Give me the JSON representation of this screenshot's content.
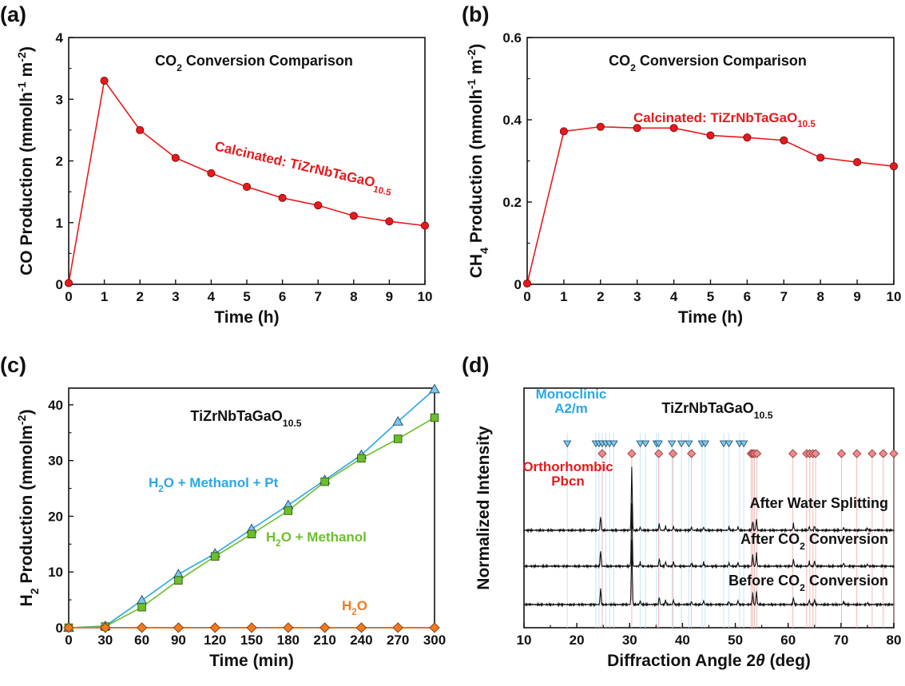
{
  "colors": {
    "red": "#e8191c",
    "blue": "#2aa7e8",
    "green": "#6cbf2a",
    "orange": "#f07b1f",
    "marker_blue": "#7fc6ea",
    "marker_pink": "#f08a8a",
    "ref_blue_line": "#bfe3f5",
    "ref_red_line": "#f3b0b0"
  },
  "chart_data": [
    {
      "panel": "(a)",
      "type": "line",
      "title_parts": [
        "CO",
        "2",
        " Conversion Comparison"
      ],
      "xlabel": "Time (h)",
      "ylabel_parts": [
        "CO Production (mmolh",
        "-1",
        " m",
        "-2",
        ")"
      ],
      "xlim": [
        0,
        10
      ],
      "ylim": [
        0,
        4
      ],
      "xticks": [
        "0",
        "1",
        "2",
        "3",
        "4",
        "5",
        "6",
        "7",
        "8",
        "9",
        "10"
      ],
      "yticks": [
        "0",
        "1",
        "2",
        "3",
        "4"
      ],
      "x": [
        0,
        1,
        2,
        3,
        4,
        5,
        6,
        7,
        8,
        9,
        10
      ],
      "series": [
        {
          "label_parts": [
            "Calcinated: TiZrNbTaGaO",
            "10.5"
          ],
          "values": [
            0.02,
            3.3,
            2.5,
            2.05,
            1.8,
            1.58,
            1.4,
            1.28,
            1.11,
            1.02,
            0.95
          ]
        }
      ]
    },
    {
      "panel": "(b)",
      "type": "line",
      "title_parts": [
        "CO",
        "2",
        " Conversion Comparison"
      ],
      "xlabel": "Time (h)",
      "ylabel_parts": [
        "CH",
        "4",
        " Production (mmolh",
        "-1",
        " m",
        "-2",
        ")"
      ],
      "xlim": [
        0,
        10
      ],
      "ylim": [
        0,
        0.6
      ],
      "xticks": [
        "0",
        "1",
        "2",
        "3",
        "4",
        "5",
        "6",
        "7",
        "8",
        "9",
        "10"
      ],
      "yticks": [
        "0",
        "0.2",
        "0.4",
        "0.6"
      ],
      "x": [
        0,
        1,
        2,
        3,
        4,
        5,
        6,
        7,
        8,
        9,
        10
      ],
      "series": [
        {
          "label_parts": [
            "Calcinated: TiZrNbTaGaO",
            "10.5"
          ],
          "values": [
            0.002,
            0.372,
            0.383,
            0.38,
            0.38,
            0.362,
            0.357,
            0.35,
            0.308,
            0.297,
            0.287
          ]
        }
      ]
    },
    {
      "panel": "(c)",
      "type": "line",
      "title_parts": [
        "TiZrNbTaGaO",
        "10.5"
      ],
      "xlabel": "Time (min)",
      "ylabel_parts": [
        "H",
        "2",
        " Production (mmolm",
        "-2",
        ")"
      ],
      "xlim": [
        0,
        300
      ],
      "ylim": [
        0,
        43
      ],
      "xticks": [
        "0",
        "30",
        "60",
        "90",
        "120",
        "150",
        "180",
        "210",
        "240",
        "270",
        "300"
      ],
      "yticks": [
        "0",
        "10",
        "20",
        "30",
        "40"
      ],
      "x": [
        0,
        30,
        60,
        90,
        120,
        150,
        180,
        210,
        240,
        270,
        300
      ],
      "series": [
        {
          "label_parts": [
            "H",
            "2",
            "O + Methanol + Pt"
          ],
          "marker": "triangle",
          "values": [
            0,
            0.3,
            4.9,
            9.6,
            13.3,
            17.7,
            22.0,
            26.5,
            31.0,
            37.0,
            42.8
          ]
        },
        {
          "label_parts": [
            "H",
            "2",
            "O + Methanol"
          ],
          "marker": "square",
          "values": [
            0,
            0.2,
            3.7,
            8.5,
            12.8,
            16.8,
            21.0,
            26.2,
            30.4,
            33.9,
            37.7
          ]
        },
        {
          "label_parts": [
            "H",
            "2",
            "O"
          ],
          "marker": "diamond",
          "values": [
            0,
            0,
            0,
            0,
            0,
            0,
            0,
            0,
            0,
            0,
            0
          ]
        }
      ]
    },
    {
      "panel": "(d)",
      "type": "line",
      "title_parts": [
        "TiZrNbTaGaO",
        "10.5"
      ],
      "xlabel_parts": [
        "Diffraction Angle 2",
        "θ",
        " (deg)"
      ],
      "ylabel": "Normalized Intensity",
      "xlim": [
        10,
        80
      ],
      "xticks": [
        "10",
        "20",
        "30",
        "40",
        "50",
        "60",
        "70",
        "80"
      ],
      "phase_labels": {
        "monoclinic": [
          "Monoclinic",
          "A2/m"
        ],
        "orthorhombic": [
          "Orthorhombic",
          "Pbcn"
        ]
      },
      "monoclinic_positions": [
        18.2,
        23.6,
        24.2,
        24.8,
        25.5,
        26.2,
        27.0,
        32.0,
        33.0,
        35.1,
        35.5,
        38.0,
        39.8,
        41.2,
        43.7,
        44.3,
        47.8,
        48.8,
        50.8,
        51.6
      ],
      "orthorhombic_positions": [
        24.8,
        30.4,
        35.5,
        38.2,
        41.7,
        53.0,
        53.3,
        53.6,
        54.1,
        60.9,
        63.5,
        64.1,
        64.7,
        65.2,
        70.1,
        73.0,
        75.9,
        78.0,
        80.0
      ],
      "series": [
        {
          "name": "After Water Splitting",
          "peaks": [
            [
              24.5,
              0.22
            ],
            [
              30.4,
              1.0
            ],
            [
              32.0,
              0.05
            ],
            [
              35.6,
              0.1
            ],
            [
              36.8,
              0.06
            ],
            [
              38.3,
              0.06
            ],
            [
              41.7,
              0.05
            ],
            [
              44.0,
              0.05
            ],
            [
              48.8,
              0.05
            ],
            [
              50.5,
              0.05
            ],
            [
              53.3,
              0.15
            ],
            [
              54.0,
              0.18
            ],
            [
              61.0,
              0.1
            ],
            [
              64.0,
              0.06
            ],
            [
              65.0,
              0.07
            ],
            [
              70.5,
              0.04
            ],
            [
              75.0,
              0.03
            ]
          ]
        },
        {
          "name_parts": [
            "After CO",
            "2",
            " Conversion"
          ],
          "peaks": [
            [
              24.5,
              0.24
            ],
            [
              30.4,
              1.0
            ],
            [
              32.0,
              0.06
            ],
            [
              35.6,
              0.12
            ],
            [
              36.8,
              0.07
            ],
            [
              38.3,
              0.07
            ],
            [
              41.7,
              0.05
            ],
            [
              44.0,
              0.06
            ],
            [
              48.8,
              0.05
            ],
            [
              50.5,
              0.06
            ],
            [
              53.3,
              0.18
            ],
            [
              54.0,
              0.2
            ],
            [
              61.0,
              0.11
            ],
            [
              64.0,
              0.07
            ],
            [
              65.0,
              0.08
            ],
            [
              70.5,
              0.05
            ],
            [
              75.0,
              0.03
            ]
          ]
        },
        {
          "name_parts": [
            "Before CO",
            "2",
            " Conversion"
          ],
          "peaks": [
            [
              24.5,
              0.25
            ],
            [
              30.4,
              1.0
            ],
            [
              32.0,
              0.06
            ],
            [
              35.6,
              0.12
            ],
            [
              36.8,
              0.07
            ],
            [
              38.3,
              0.07
            ],
            [
              41.7,
              0.05
            ],
            [
              44.0,
              0.06
            ],
            [
              48.8,
              0.05
            ],
            [
              50.5,
              0.06
            ],
            [
              53.3,
              0.18
            ],
            [
              54.0,
              0.21
            ],
            [
              61.0,
              0.11
            ],
            [
              64.0,
              0.07
            ],
            [
              65.0,
              0.08
            ],
            [
              70.5,
              0.05
            ],
            [
              75.0,
              0.03
            ]
          ]
        }
      ]
    }
  ]
}
